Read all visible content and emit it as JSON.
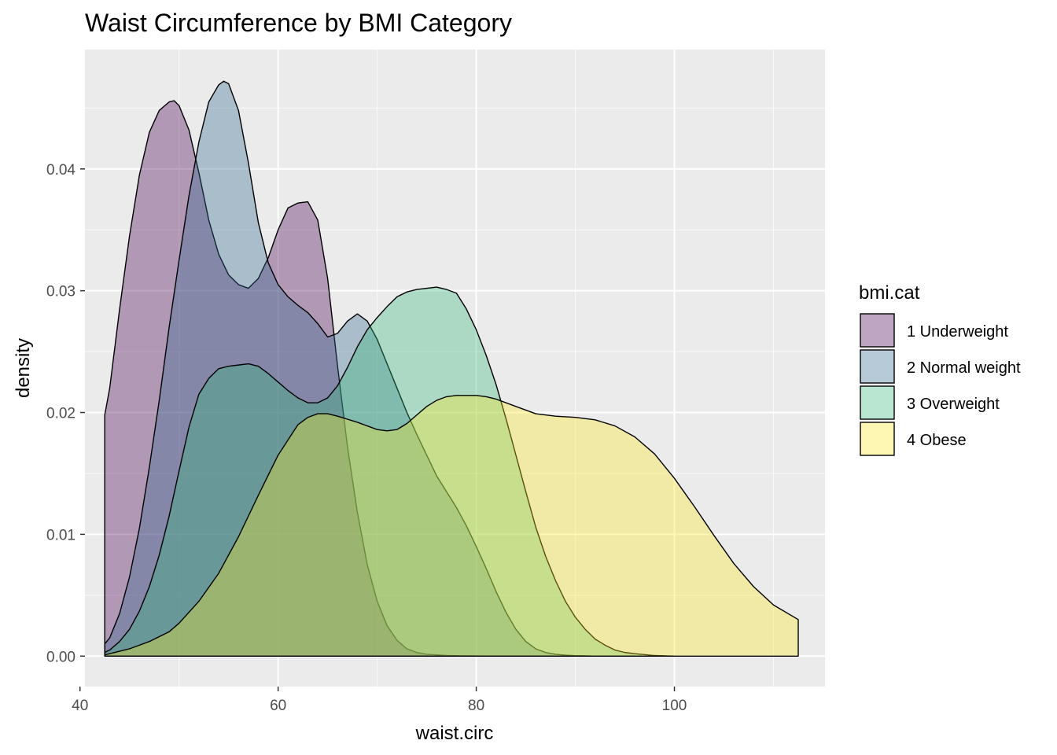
{
  "chart_data": {
    "type": "area",
    "title": "Waist Circumference by BMI Category",
    "xlabel": "waist.circ",
    "ylabel": "density",
    "xlim": [
      40.5,
      115.2
    ],
    "ylim": [
      -0.0025,
      0.0498
    ],
    "x_ticks": [
      40,
      60,
      80,
      100
    ],
    "x_tick_labels": [
      "40",
      "60",
      "80",
      "100"
    ],
    "y_ticks": [
      0.0,
      0.01,
      0.02,
      0.03,
      0.04
    ],
    "y_tick_labels": [
      "0.00",
      "0.01",
      "0.02",
      "0.03",
      "0.04"
    ],
    "grid": true,
    "legend": {
      "title": "bmi.cat",
      "position": "right"
    },
    "fill_opacity": 0.35,
    "series": [
      {
        "name": "1 Underweight",
        "color": "#440154",
        "x": [
          42.5,
          43,
          44,
          45,
          46,
          47,
          48,
          49,
          49.5,
          50,
          51,
          52,
          53,
          54,
          55,
          56,
          57,
          58,
          59,
          60,
          61,
          62,
          63,
          64,
          65,
          66,
          67,
          68,
          69,
          70,
          71,
          72,
          73,
          74,
          75,
          76,
          77,
          78,
          79,
          80,
          81,
          82,
          83,
          84,
          85
        ],
        "y": [
          0.0198,
          0.022,
          0.0285,
          0.0345,
          0.0395,
          0.043,
          0.0448,
          0.0455,
          0.0456,
          0.0452,
          0.0432,
          0.0397,
          0.0358,
          0.033,
          0.0313,
          0.0305,
          0.0302,
          0.031,
          0.0327,
          0.035,
          0.0368,
          0.0372,
          0.0373,
          0.0358,
          0.031,
          0.0238,
          0.0172,
          0.0118,
          0.0075,
          0.0045,
          0.0025,
          0.0013,
          0.0006,
          0.0003,
          0.00015,
          0.0001,
          5e-05,
          3e-05,
          2e-05,
          1e-05,
          0,
          0,
          0,
          0,
          0
        ]
      },
      {
        "name": "2 Normal weight",
        "color": "#31688e",
        "x": [
          42.5,
          43,
          44,
          45,
          46,
          47,
          48,
          49,
          50,
          51,
          52,
          53,
          54,
          54.5,
          55,
          56,
          57,
          58,
          59,
          60,
          61,
          62,
          63,
          64,
          65,
          66,
          67,
          68,
          69,
          70,
          71,
          72,
          73,
          74,
          75,
          76,
          77,
          78,
          79,
          80,
          81,
          82,
          83,
          84,
          85,
          86,
          87,
          88,
          89,
          90,
          91,
          92
        ],
        "y": [
          0.001,
          0.0015,
          0.0035,
          0.0065,
          0.0105,
          0.0155,
          0.021,
          0.027,
          0.0325,
          0.0378,
          0.0422,
          0.0455,
          0.0469,
          0.0472,
          0.047,
          0.0448,
          0.0405,
          0.0356,
          0.0323,
          0.0305,
          0.0295,
          0.0288,
          0.0282,
          0.0273,
          0.0262,
          0.0265,
          0.0275,
          0.0281,
          0.0275,
          0.026,
          0.024,
          0.022,
          0.02,
          0.0182,
          0.0165,
          0.0148,
          0.0135,
          0.0122,
          0.0107,
          0.009,
          0.0072,
          0.0053,
          0.0036,
          0.0022,
          0.0012,
          0.0006,
          0.0003,
          0.00015,
          8e-05,
          4e-05,
          2e-05,
          0
        ]
      },
      {
        "name": "3 Overweight",
        "color": "#35b779",
        "x": [
          42.5,
          43,
          44,
          45,
          46,
          47,
          48,
          49,
          50,
          51,
          52,
          53,
          54,
          55,
          56,
          57,
          58,
          59,
          60,
          61,
          62,
          63,
          64,
          65,
          66,
          67,
          68,
          69,
          70,
          71,
          72,
          73,
          74,
          75,
          76,
          77,
          78,
          79,
          80,
          81,
          82,
          83,
          84,
          85,
          86,
          87,
          88,
          89,
          90,
          91,
          92,
          93,
          94,
          95,
          96,
          98,
          100
        ],
        "y": [
          0.0003,
          0.0005,
          0.0012,
          0.0022,
          0.0037,
          0.0057,
          0.0083,
          0.0115,
          0.0152,
          0.0188,
          0.0215,
          0.0228,
          0.0236,
          0.0238,
          0.0239,
          0.024,
          0.0238,
          0.0232,
          0.0225,
          0.0218,
          0.0212,
          0.0208,
          0.0208,
          0.0212,
          0.0222,
          0.0237,
          0.0254,
          0.0268,
          0.0278,
          0.0287,
          0.0295,
          0.0299,
          0.0301,
          0.0302,
          0.0303,
          0.0301,
          0.0298,
          0.0285,
          0.0268,
          0.0247,
          0.0223,
          0.0195,
          0.0165,
          0.0135,
          0.0106,
          0.0082,
          0.0062,
          0.0045,
          0.0032,
          0.0022,
          0.0014,
          0.0009,
          0.0005,
          0.0003,
          0.0002,
          5e-05,
          0
        ]
      },
      {
        "name": "4 Obese",
        "color": "#fde725",
        "x": [
          42.5,
          43,
          45,
          47,
          49,
          50,
          52,
          54,
          56,
          58,
          60,
          62,
          63,
          64,
          65,
          66,
          68,
          70,
          71,
          72,
          73,
          74,
          75,
          76,
          77,
          78,
          79,
          80,
          81,
          82,
          84,
          86,
          88,
          90,
          92,
          94,
          96,
          98,
          100,
          102,
          104,
          106,
          108,
          110,
          112.5
        ],
        "y": [
          0.0001,
          0.0002,
          0.0006,
          0.0012,
          0.002,
          0.0027,
          0.0045,
          0.0068,
          0.0098,
          0.0132,
          0.0165,
          0.019,
          0.0196,
          0.0199,
          0.0199,
          0.0197,
          0.0192,
          0.0186,
          0.0185,
          0.0186,
          0.0191,
          0.0198,
          0.0205,
          0.021,
          0.0213,
          0.0214,
          0.0214,
          0.0214,
          0.0213,
          0.0211,
          0.0205,
          0.0199,
          0.0197,
          0.0196,
          0.0194,
          0.0189,
          0.018,
          0.0166,
          0.0146,
          0.0123,
          0.0099,
          0.0076,
          0.0057,
          0.0042,
          0.003
        ]
      }
    ]
  }
}
